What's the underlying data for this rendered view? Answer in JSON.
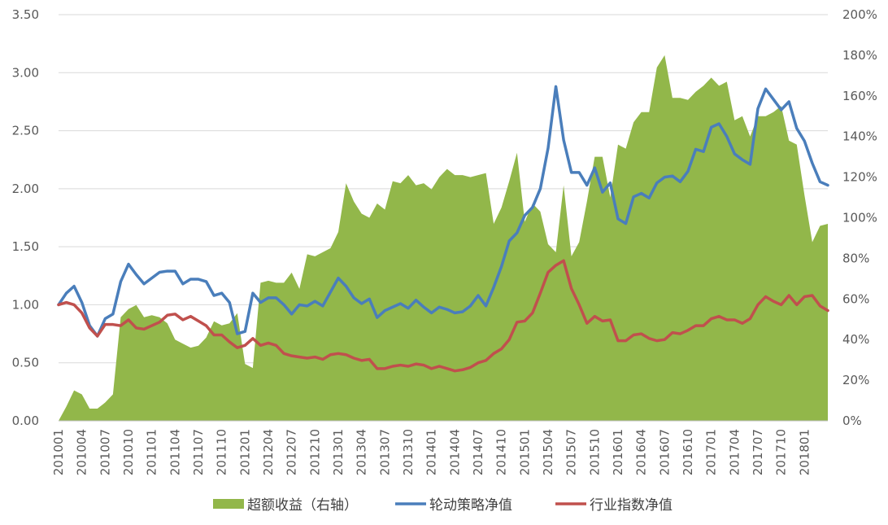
{
  "chart_data": {
    "type": "line",
    "x": [
      "201001",
      "201002",
      "201003",
      "201004",
      "201005",
      "201006",
      "201007",
      "201008",
      "201009",
      "201010",
      "201011",
      "201012",
      "201101",
      "201102",
      "201103",
      "201104",
      "201105",
      "201106",
      "201107",
      "201108",
      "201109",
      "201110",
      "201111",
      "201112",
      "201201",
      "201202",
      "201203",
      "201204",
      "201205",
      "201206",
      "201207",
      "201208",
      "201209",
      "201210",
      "201211",
      "201212",
      "201301",
      "201302",
      "201303",
      "201304",
      "201305",
      "201306",
      "201307",
      "201308",
      "201309",
      "201310",
      "201311",
      "201312",
      "201401",
      "201402",
      "201403",
      "201404",
      "201405",
      "201406",
      "201407",
      "201408",
      "201409",
      "201410",
      "201411",
      "201412",
      "201501",
      "201502",
      "201503",
      "201504",
      "201505",
      "201506",
      "201507",
      "201508",
      "201509",
      "201510",
      "201511",
      "201512",
      "201601",
      "201602",
      "201603",
      "201604",
      "201605",
      "201606",
      "201607",
      "201608",
      "201609",
      "201610",
      "201611",
      "201612",
      "201701",
      "201702",
      "201703",
      "201704",
      "201705",
      "201706",
      "201707",
      "201708",
      "201709",
      "201710",
      "201711",
      "201712",
      "201801",
      "201802",
      "201803",
      "201804"
    ],
    "x_tick_labels": [
      "201001",
      "201004",
      "201007",
      "201010",
      "201101",
      "201104",
      "201107",
      "201110",
      "201201",
      "201204",
      "201207",
      "201210",
      "201301",
      "201304",
      "201307",
      "201310",
      "201401",
      "201404",
      "201407",
      "201410",
      "201501",
      "201504",
      "201507",
      "201510",
      "201601",
      "201604",
      "201607",
      "201610",
      "201701",
      "201704",
      "201707",
      "201710",
      "201801"
    ],
    "y_left": {
      "ticks": [
        "0.00",
        "0.50",
        "1.00",
        "1.50",
        "2.00",
        "2.50",
        "3.00",
        "3.50"
      ],
      "lim": [
        0,
        3.5
      ]
    },
    "y_right": {
      "ticks": [
        "0%",
        "20%",
        "40%",
        "60%",
        "80%",
        "100%",
        "120%",
        "140%",
        "160%",
        "180%",
        "200%"
      ],
      "lim": [
        0,
        200
      ]
    },
    "grid": true,
    "legend_position": "bottom",
    "series": [
      {
        "name": "超额收益（右轴）",
        "type": "area",
        "axis": "right",
        "color": "#92b74a",
        "values": [
          0,
          7,
          15,
          13,
          6,
          6,
          9,
          13,
          51,
          55,
          57,
          51,
          52,
          51,
          48,
          40,
          38,
          36,
          37,
          41,
          49,
          47,
          48,
          53,
          28,
          26,
          68,
          69,
          68,
          68,
          73,
          65,
          82,
          81,
          83,
          85,
          93,
          117,
          108,
          102,
          100,
          107,
          104,
          118,
          117,
          121,
          116,
          117,
          114,
          120,
          124,
          121,
          121,
          120,
          121,
          122,
          97,
          105,
          118,
          132,
          98,
          107,
          103,
          87,
          83,
          116,
          81,
          88,
          108,
          130,
          130,
          110,
          136,
          134,
          147,
          152,
          152,
          174,
          180,
          159,
          159,
          158,
          162,
          165,
          169,
          165,
          167,
          148,
          150,
          140,
          150,
          150,
          152,
          155,
          138,
          136,
          111,
          88,
          96,
          97
        ]
      },
      {
        "name": "轮动策略净值",
        "type": "line",
        "axis": "left",
        "color": "#4a7ebb",
        "values": [
          1.0,
          1.1,
          1.16,
          1.02,
          0.82,
          0.73,
          0.88,
          0.92,
          1.2,
          1.35,
          1.26,
          1.18,
          1.23,
          1.28,
          1.29,
          1.29,
          1.18,
          1.22,
          1.22,
          1.2,
          1.08,
          1.1,
          1.02,
          0.75,
          0.77,
          1.1,
          1.02,
          1.06,
          1.06,
          1.0,
          0.92,
          1.0,
          0.99,
          1.03,
          0.99,
          1.11,
          1.23,
          1.16,
          1.06,
          1.01,
          1.05,
          0.89,
          0.95,
          0.98,
          1.01,
          0.97,
          1.04,
          0.98,
          0.93,
          0.98,
          0.96,
          0.93,
          0.94,
          0.99,
          1.08,
          0.99,
          1.15,
          1.33,
          1.55,
          1.62,
          1.77,
          1.84,
          2.0,
          2.35,
          2.88,
          2.42,
          2.14,
          2.14,
          2.03,
          2.18,
          1.97,
          2.05,
          1.74,
          1.7,
          1.93,
          1.96,
          1.92,
          2.05,
          2.1,
          2.11,
          2.06,
          2.15,
          2.34,
          2.32,
          2.53,
          2.56,
          2.45,
          2.3,
          2.25,
          2.21,
          2.69,
          2.86,
          2.77,
          2.68,
          2.75,
          2.52,
          2.41,
          2.22,
          2.06,
          2.03
        ]
      },
      {
        "name": "行业指数净值",
        "type": "line",
        "axis": "left",
        "color": "#c0504d",
        "values": [
          1.0,
          1.02,
          1.0,
          0.93,
          0.8,
          0.73,
          0.83,
          0.83,
          0.82,
          0.87,
          0.8,
          0.79,
          0.82,
          0.85,
          0.91,
          0.92,
          0.87,
          0.9,
          0.86,
          0.82,
          0.74,
          0.74,
          0.68,
          0.63,
          0.65,
          0.71,
          0.65,
          0.67,
          0.65,
          0.58,
          0.56,
          0.55,
          0.54,
          0.55,
          0.53,
          0.57,
          0.58,
          0.57,
          0.54,
          0.52,
          0.53,
          0.45,
          0.45,
          0.47,
          0.48,
          0.47,
          0.49,
          0.48,
          0.45,
          0.47,
          0.45,
          0.43,
          0.44,
          0.46,
          0.5,
          0.52,
          0.58,
          0.62,
          0.7,
          0.85,
          0.86,
          0.93,
          1.1,
          1.28,
          1.34,
          1.38,
          1.14,
          1.0,
          0.84,
          0.9,
          0.86,
          0.87,
          0.69,
          0.69,
          0.74,
          0.75,
          0.71,
          0.69,
          0.7,
          0.76,
          0.75,
          0.78,
          0.82,
          0.82,
          0.88,
          0.9,
          0.87,
          0.87,
          0.84,
          0.88,
          1.0,
          1.07,
          1.03,
          1.0,
          1.08,
          1.0,
          1.07,
          1.08,
          0.99,
          0.95
        ]
      }
    ]
  }
}
